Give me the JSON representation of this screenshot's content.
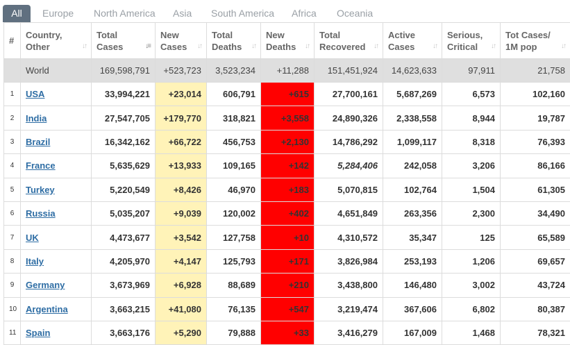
{
  "tabs": [
    {
      "label": "All",
      "active": true
    },
    {
      "label": "Europe"
    },
    {
      "label": "North America"
    },
    {
      "label": "Asia"
    },
    {
      "label": "South America"
    },
    {
      "label": "Africa"
    },
    {
      "label": "Oceania"
    }
  ],
  "colors": {
    "tab_active": "#607080",
    "new_cases": "#fff3b8",
    "new_deaths": "#ff0000",
    "world_row": "#dfdfdf",
    "link": "#2e6da4"
  },
  "headers": {
    "hash": "#",
    "country": [
      "Country,",
      "Other"
    ],
    "total_cases": [
      "Total",
      "Cases"
    ],
    "new_cases": [
      "New",
      "Cases"
    ],
    "total_deaths": [
      "Total",
      "Deaths"
    ],
    "new_deaths": [
      "New",
      "Deaths"
    ],
    "total_recovered": [
      "Total",
      "Recovered"
    ],
    "active_cases": [
      "Active",
      "Cases"
    ],
    "serious": [
      "Serious,",
      "Critical"
    ],
    "per_million": [
      "Tot Cases/",
      "1M pop"
    ]
  },
  "world": {
    "name": "World",
    "total_cases": "169,598,791",
    "new_cases": "+523,723",
    "total_deaths": "3,523,234",
    "new_deaths": "+11,288",
    "total_recovered": "151,451,924",
    "active_cases": "14,623,633",
    "serious": "97,911",
    "per_million": "21,758"
  },
  "rows": [
    {
      "idx": "1",
      "name": "USA",
      "total_cases": "33,994,221",
      "new_cases": "+23,014",
      "total_deaths": "606,791",
      "new_deaths": "+615",
      "total_recovered": "27,700,161",
      "active_cases": "5,687,269",
      "serious": "6,573",
      "per_million": "102,160"
    },
    {
      "idx": "2",
      "name": "India",
      "total_cases": "27,547,705",
      "new_cases": "+179,770",
      "total_deaths": "318,821",
      "new_deaths": "+3,558",
      "total_recovered": "24,890,326",
      "active_cases": "2,338,558",
      "serious": "8,944",
      "per_million": "19,787"
    },
    {
      "idx": "3",
      "name": "Brazil",
      "total_cases": "16,342,162",
      "new_cases": "+66,722",
      "total_deaths": "456,753",
      "new_deaths": "+2,130",
      "total_recovered": "14,786,292",
      "active_cases": "1,099,117",
      "serious": "8,318",
      "per_million": "76,393"
    },
    {
      "idx": "4",
      "name": "France",
      "total_cases": "5,635,629",
      "new_cases": "+13,933",
      "total_deaths": "109,165",
      "new_deaths": "+142",
      "total_recovered": "5,284,406",
      "recovered_estimated": true,
      "active_cases": "242,058",
      "serious": "3,206",
      "per_million": "86,166"
    },
    {
      "idx": "5",
      "name": "Turkey",
      "total_cases": "5,220,549",
      "new_cases": "+8,426",
      "total_deaths": "46,970",
      "new_deaths": "+183",
      "total_recovered": "5,070,815",
      "active_cases": "102,764",
      "serious": "1,504",
      "per_million": "61,305"
    },
    {
      "idx": "6",
      "name": "Russia",
      "total_cases": "5,035,207",
      "new_cases": "+9,039",
      "total_deaths": "120,002",
      "new_deaths": "+402",
      "total_recovered": "4,651,849",
      "active_cases": "263,356",
      "serious": "2,300",
      "per_million": "34,490"
    },
    {
      "idx": "7",
      "name": "UK",
      "total_cases": "4,473,677",
      "new_cases": "+3,542",
      "total_deaths": "127,758",
      "new_deaths": "+10",
      "total_recovered": "4,310,572",
      "active_cases": "35,347",
      "serious": "125",
      "per_million": "65,589"
    },
    {
      "idx": "8",
      "name": "Italy",
      "total_cases": "4,205,970",
      "new_cases": "+4,147",
      "total_deaths": "125,793",
      "new_deaths": "+171",
      "total_recovered": "3,826,984",
      "active_cases": "253,193",
      "serious": "1,206",
      "per_million": "69,657"
    },
    {
      "idx": "9",
      "name": "Germany",
      "total_cases": "3,673,969",
      "new_cases": "+6,928",
      "total_deaths": "88,689",
      "new_deaths": "+210",
      "total_recovered": "3,438,800",
      "active_cases": "146,480",
      "serious": "3,002",
      "per_million": "43,724"
    },
    {
      "idx": "10",
      "name": "Argentina",
      "total_cases": "3,663,215",
      "new_cases": "+41,080",
      "total_deaths": "76,135",
      "new_deaths": "+547",
      "total_recovered": "3,219,474",
      "active_cases": "367,606",
      "serious": "6,802",
      "per_million": "80,387"
    },
    {
      "idx": "11",
      "name": "Spain",
      "total_cases": "3,663,176",
      "new_cases": "+5,290",
      "total_deaths": "79,888",
      "new_deaths": "+33",
      "total_recovered": "3,416,279",
      "active_cases": "167,009",
      "serious": "1,468",
      "per_million": "78,321"
    }
  ]
}
